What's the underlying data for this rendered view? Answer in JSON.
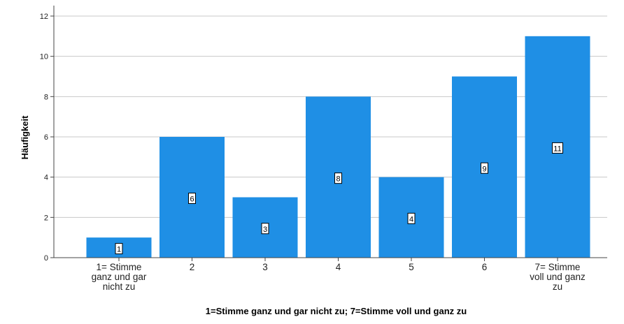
{
  "chart_data": {
    "type": "bar",
    "title": "",
    "xlabel": "1=Stimme ganz und gar nicht zu; 7=Stimme voll und ganz zu",
    "ylabel": "Häufigkeit",
    "categories": [
      "1= Stimme ganz und gar nicht zu",
      "2",
      "3",
      "4",
      "5",
      "6",
      "7= Stimme voll und ganz zu"
    ],
    "category_lines": [
      [
        "1= Stimme",
        "ganz und gar",
        "nicht zu"
      ],
      [
        "2"
      ],
      [
        "3"
      ],
      [
        "4"
      ],
      [
        "5"
      ],
      [
        "6"
      ],
      [
        "7= Stimme",
        "voll und ganz",
        "zu"
      ]
    ],
    "values": [
      1,
      6,
      3,
      8,
      4,
      9,
      11
    ],
    "data_labels": [
      "1",
      "6",
      "3",
      "8",
      "4",
      "9",
      "11"
    ],
    "ylim": [
      0,
      12
    ],
    "yticks": [
      0,
      2,
      4,
      6,
      8,
      10,
      12
    ],
    "grid": true,
    "bar_color": "#1f8fe5",
    "grid_color": "#c8c8c8"
  }
}
